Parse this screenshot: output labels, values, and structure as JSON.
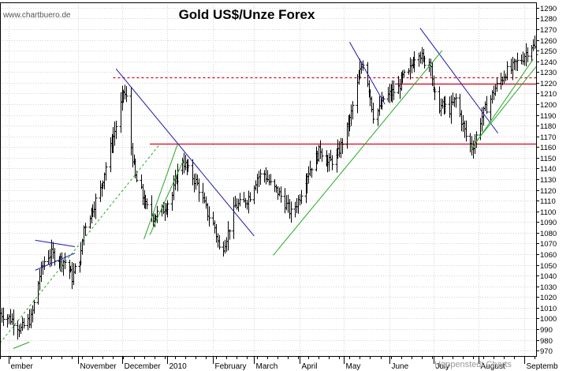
{
  "chart_data": {
    "type": "ohlc",
    "title": "Gold US$/Unze Forex",
    "watermark": "www.chartbuero.de",
    "credit": "Hoppenstedt Charts",
    "ylim": [
      965,
      1295
    ],
    "y_ticks": [
      970,
      980,
      990,
      1000,
      1010,
      1020,
      1030,
      1040,
      1050,
      1060,
      1070,
      1080,
      1090,
      1100,
      1110,
      1120,
      1130,
      1140,
      1150,
      1160,
      1170,
      1180,
      1190,
      1200,
      1210,
      1220,
      1230,
      1240,
      1250,
      1260,
      1270,
      1280,
      1290
    ],
    "x_range": [
      "2009-09-09",
      "2010-09-09"
    ],
    "x_labels": [
      {
        "label": "ember",
        "date": "2009-09-15"
      },
      {
        "label": "November",
        "date": "2009-11-01"
      },
      {
        "label": "December",
        "date": "2009-12-01"
      },
      {
        "label": "2010",
        "date": "2010-01-01"
      },
      {
        "label": "February",
        "date": "2010-02-01"
      },
      {
        "label": "March",
        "date": "2010-03-01"
      },
      {
        "label": "April",
        "date": "2010-04-01"
      },
      {
        "label": "May",
        "date": "2010-05-01"
      },
      {
        "label": "June",
        "date": "2010-06-01"
      },
      {
        "label": "July",
        "date": "2010-07-01"
      },
      {
        "label": "August",
        "date": "2010-08-01"
      },
      {
        "label": "Septemb",
        "date": "2010-09-01"
      }
    ],
    "close_path": [
      [
        "2009-09-09",
        1005
      ],
      [
        "2009-09-18",
        998
      ],
      [
        "2009-09-23",
        990
      ],
      [
        "2009-09-30",
        1000
      ],
      [
        "2009-10-06",
        1040
      ],
      [
        "2009-10-10",
        1058
      ],
      [
        "2009-10-14",
        1060
      ],
      [
        "2009-10-20",
        1055
      ],
      [
        "2009-10-24",
        1052
      ],
      [
        "2009-10-28",
        1038
      ],
      [
        "2009-11-03",
        1060
      ],
      [
        "2009-11-05",
        1085
      ],
      [
        "2009-11-10",
        1100
      ],
      [
        "2009-11-16",
        1120
      ],
      [
        "2009-11-20",
        1142
      ],
      [
        "2009-11-24",
        1165
      ],
      [
        "2009-11-27",
        1180
      ],
      [
        "2009-12-02",
        1212
      ],
      [
        "2009-12-04",
        1205
      ],
      [
        "2009-12-07",
        1160
      ],
      [
        "2009-12-10",
        1132
      ],
      [
        "2009-12-14",
        1118
      ],
      [
        "2009-12-17",
        1105
      ],
      [
        "2009-12-22",
        1095
      ],
      [
        "2009-12-28",
        1100
      ],
      [
        "2010-01-04",
        1115
      ],
      [
        "2010-01-07",
        1132
      ],
      [
        "2010-01-11",
        1148
      ],
      [
        "2010-01-14",
        1140
      ],
      [
        "2010-01-18",
        1132
      ],
      [
        "2010-01-21",
        1125
      ],
      [
        "2010-01-25",
        1110
      ],
      [
        "2010-01-28",
        1098
      ],
      [
        "2010-02-02",
        1085
      ],
      [
        "2010-02-05",
        1065
      ],
      [
        "2010-02-08",
        1068
      ],
      [
        "2010-02-11",
        1080
      ],
      [
        "2010-02-16",
        1105
      ],
      [
        "2010-02-22",
        1108
      ],
      [
        "2010-02-26",
        1115
      ],
      [
        "2010-03-03",
        1132
      ],
      [
        "2010-03-08",
        1135
      ],
      [
        "2010-03-12",
        1125
      ],
      [
        "2010-03-17",
        1118
      ],
      [
        "2010-03-22",
        1108
      ],
      [
        "2010-03-26",
        1098
      ],
      [
        "2010-03-31",
        1110
      ],
      [
        "2010-04-06",
        1135
      ],
      [
        "2010-04-12",
        1150
      ],
      [
        "2010-04-15",
        1158
      ],
      [
        "2010-04-20",
        1145
      ],
      [
        "2010-04-26",
        1150
      ],
      [
        "2010-04-30",
        1165
      ],
      [
        "2010-05-05",
        1185
      ],
      [
        "2010-05-08",
        1205
      ],
      [
        "2010-05-12",
        1230
      ],
      [
        "2010-05-14",
        1240
      ],
      [
        "2010-05-18",
        1215
      ],
      [
        "2010-05-21",
        1190
      ],
      [
        "2010-05-25",
        1195
      ],
      [
        "2010-05-28",
        1205
      ],
      [
        "2010-06-02",
        1210
      ],
      [
        "2010-06-07",
        1215
      ],
      [
        "2010-06-10",
        1225
      ],
      [
        "2010-06-14",
        1228
      ],
      [
        "2010-06-18",
        1245
      ],
      [
        "2010-06-21",
        1250
      ],
      [
        "2010-06-24",
        1240
      ],
      [
        "2010-06-29",
        1240
      ],
      [
        "2010-07-01",
        1210
      ],
      [
        "2010-07-05",
        1198
      ],
      [
        "2010-07-08",
        1198
      ],
      [
        "2010-07-12",
        1195
      ],
      [
        "2010-07-16",
        1205
      ],
      [
        "2010-07-20",
        1185
      ],
      [
        "2010-07-23",
        1170
      ],
      [
        "2010-07-27",
        1160
      ],
      [
        "2010-07-29",
        1165
      ],
      [
        "2010-08-02",
        1185
      ],
      [
        "2010-08-05",
        1195
      ],
      [
        "2010-08-09",
        1205
      ],
      [
        "2010-08-12",
        1215
      ],
      [
        "2010-08-16",
        1222
      ],
      [
        "2010-08-19",
        1230
      ],
      [
        "2010-08-23",
        1232
      ],
      [
        "2010-08-26",
        1238
      ],
      [
        "2010-08-30",
        1242
      ],
      [
        "2010-09-02",
        1248
      ],
      [
        "2010-09-06",
        1255
      ],
      [
        "2010-09-08",
        1252
      ],
      [
        "2010-09-09",
        1245
      ]
    ],
    "hlines": [
      {
        "y": 1225,
        "color": "#e0001b",
        "dash": true,
        "from": "2009-11-25",
        "to": "2010-09-09"
      },
      {
        "y": 1219,
        "color": "#e0001b",
        "dash": false,
        "from": "2010-06-05",
        "to": "2010-09-09"
      },
      {
        "y": 1163,
        "color": "#e0001b",
        "dash": false,
        "from": "2009-12-20",
        "to": "2010-09-09"
      }
    ],
    "trendlines": [
      {
        "color": "#1a1aa8",
        "dash": false,
        "from": [
          "2009-10-03",
          1073
        ],
        "to": [
          "2009-10-30",
          1067
        ]
      },
      {
        "color": "#1a1aa8",
        "dash": false,
        "from": [
          "2009-10-03",
          1045
        ],
        "to": [
          "2009-10-30",
          1061
        ]
      },
      {
        "color": "#1a1aa8",
        "dash": false,
        "from": [
          "2009-11-27",
          1233
        ],
        "to": [
          "2010-03-01",
          1077
        ]
      },
      {
        "color": "#1a1aa8",
        "dash": false,
        "from": [
          "2010-05-05",
          1258
        ],
        "to": [
          "2010-05-29",
          1200
        ]
      },
      {
        "color": "#1a1aa8",
        "dash": false,
        "from": [
          "2010-06-22",
          1271
        ],
        "to": [
          "2010-08-14",
          1173
        ]
      },
      {
        "color": "#27a827",
        "dash": true,
        "from": [
          "2009-09-09",
          977
        ],
        "to": [
          "2009-12-27",
          1163
        ]
      },
      {
        "color": "#27a827",
        "dash": false,
        "from": [
          "2009-09-18",
          972
        ],
        "to": [
          "2009-09-29",
          978
        ]
      },
      {
        "color": "#27a827",
        "dash": false,
        "from": [
          "2009-12-16",
          1074
        ],
        "to": [
          "2010-01-08",
          1163
        ]
      },
      {
        "color": "#27a827",
        "dash": false,
        "from": [
          "2009-12-20",
          1078
        ],
        "to": [
          "2010-01-12",
          1148
        ]
      },
      {
        "color": "#27a827",
        "dash": false,
        "from": [
          "2010-03-14",
          1059
        ],
        "to": [
          "2010-07-07",
          1250
        ]
      },
      {
        "color": "#27a827",
        "dash": false,
        "from": [
          "2010-07-27",
          1158
        ],
        "to": [
          "2010-09-07",
          1242
        ]
      },
      {
        "color": "#27a827",
        "dash": false,
        "from": [
          "2010-07-29",
          1163
        ],
        "to": [
          "2010-09-09",
          1235
        ]
      }
    ]
  }
}
